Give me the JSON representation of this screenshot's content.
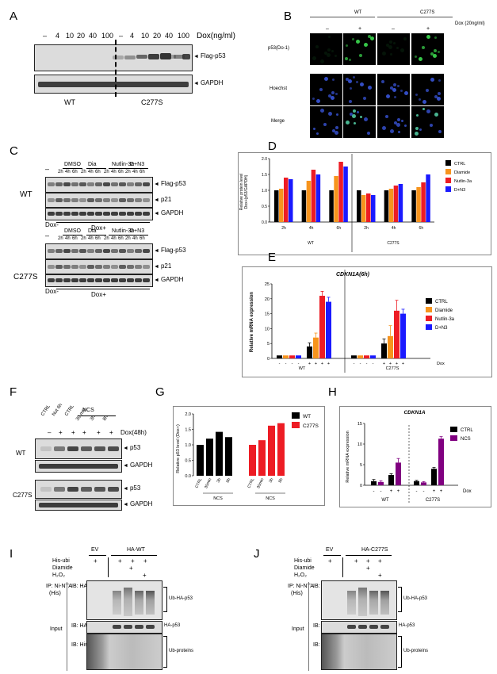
{
  "panels": [
    "A",
    "B",
    "C",
    "D",
    "E",
    "F",
    "G",
    "H",
    "I",
    "J"
  ],
  "panelA": {
    "dose_label": "Dox(ng/ml)",
    "doses": [
      "–",
      "4",
      "10",
      "20",
      "40",
      "100",
      "–",
      "4",
      "10",
      "20",
      "40",
      "100"
    ],
    "rows": [
      "Flag-p53",
      "GAPDH"
    ],
    "groups": [
      "WT",
      "C277S"
    ]
  },
  "panelB": {
    "groups": [
      "WT",
      "C277S"
    ],
    "dox": "Dox (20ng/ml)",
    "signs": [
      "–",
      "+",
      "–",
      "+"
    ],
    "rows": [
      "p53(Do-1)",
      "Hoechst",
      "Merge"
    ]
  },
  "panelC": {
    "treatments": [
      "DMSO",
      "Dia",
      "Nutlin-3a",
      "D+N3"
    ],
    "times": [
      "2h",
      "4h",
      "6h"
    ],
    "dash": "–",
    "rows": [
      "Flag-p53",
      "p21",
      "GAPDH"
    ],
    "doxneg": "Dox-",
    "doxpos": "Dox+",
    "groups": [
      "WT",
      "C277S"
    ]
  },
  "panelD": {
    "ylabel": "Relative protein level\nDox+(p53/GAPDH)",
    "legend": [
      "CTRL",
      "Diamide",
      "Nutlin-3a",
      "D+N3"
    ],
    "colors": [
      "#000000",
      "#f7941d",
      "#ed1c24",
      "#1a1aff"
    ],
    "times": [
      "2h",
      "4h",
      "6h",
      "2h",
      "4h",
      "6h"
    ],
    "groups": [
      "WT",
      "C277S"
    ],
    "yticks": [
      "0.0",
      "0.5",
      "1.0",
      "1.5",
      "2.0"
    ],
    "chart_data": {
      "type": "bar",
      "categories": [
        "WT 2h",
        "WT 4h",
        "WT 6h",
        "C277S 2h",
        "C277S 4h",
        "C277S 6h"
      ],
      "series": [
        {
          "name": "CTRL",
          "values": [
            1.0,
            1.0,
            1.0,
            1.0,
            1.0,
            1.0
          ]
        },
        {
          "name": "Diamide",
          "values": [
            1.05,
            1.3,
            1.45,
            0.85,
            1.05,
            1.1
          ]
        },
        {
          "name": "Nutlin-3a",
          "values": [
            1.4,
            1.65,
            1.9,
            0.9,
            1.15,
            1.25
          ]
        },
        {
          "name": "D+N3",
          "values": [
            1.35,
            1.5,
            1.75,
            0.85,
            1.2,
            1.5
          ]
        }
      ],
      "ylim": [
        0,
        2.0
      ]
    }
  },
  "panelE": {
    "title": "CDKN1A(6h)",
    "ylabel": "Relative mRNA expression",
    "legend": [
      "CTRL",
      "Diamide",
      "Nutlin-3a",
      "D+N3"
    ],
    "colors": [
      "#000000",
      "#f7941d",
      "#ed1c24",
      "#1a1aff"
    ],
    "groups": [
      "WT",
      "C277S"
    ],
    "dox": "Dox",
    "signs": [
      "-",
      "-",
      "-",
      "-",
      "+",
      "+",
      "+",
      "+",
      "-",
      "-",
      "-",
      "-",
      "+",
      "+",
      "+",
      "+"
    ],
    "yticks": [
      "0",
      "5",
      "10",
      "15",
      "20",
      "25"
    ],
    "chart_data": {
      "type": "bar",
      "categories": [
        "WT Dox-",
        "WT Dox+",
        "C277S Dox-",
        "C277S Dox+"
      ],
      "series": [
        {
          "name": "CTRL",
          "values": [
            1,
            4,
            1,
            5
          ]
        },
        {
          "name": "Diamide",
          "values": [
            1,
            7,
            1,
            7.5
          ]
        },
        {
          "name": "Nutlin-3a",
          "values": [
            1,
            21,
            1,
            16
          ]
        },
        {
          "name": "D+N3",
          "values": [
            1,
            19,
            1,
            15
          ]
        }
      ],
      "ylim": [
        0,
        25
      ]
    }
  },
  "panelF": {
    "cols": [
      "CTRL",
      "Nut 6h",
      "CTRL",
      "30 min",
      "3h",
      "8h"
    ],
    "ncs": "NCS",
    "dox": "Dox(48h)",
    "signs": [
      "–",
      "+",
      "+",
      "+",
      "+",
      "+"
    ],
    "rows": [
      "p53",
      "GAPDH"
    ],
    "groups": [
      "WT",
      "C277S"
    ]
  },
  "panelG": {
    "ylabel": "Relative p53 level (Dox+)",
    "legend": [
      "WT",
      "C277S"
    ],
    "colors": [
      "#000000",
      "#ed1c24"
    ],
    "xticks": [
      "CTRL",
      "30min",
      "3h",
      "8h",
      "CTRL",
      "30min",
      "3h",
      "8h"
    ],
    "ncs": "NCS",
    "yticks": [
      "0.0",
      "0.5",
      "1.0",
      "1.5",
      "2.0"
    ],
    "chart_data": {
      "type": "bar",
      "categories": [
        "CTRL",
        "30min",
        "3h",
        "8h"
      ],
      "series": [
        {
          "name": "WT",
          "values": [
            1.0,
            1.2,
            1.42,
            1.25
          ]
        },
        {
          "name": "C277S",
          "values": [
            1.0,
            1.15,
            1.62,
            1.7
          ]
        }
      ],
      "ylim": [
        0,
        2.0
      ]
    }
  },
  "panelH": {
    "title": "CDKN1A",
    "ylabel": "Relative mRNA expression",
    "legend": [
      "CTRL",
      "NCS"
    ],
    "colors": [
      "#000000",
      "#800080"
    ],
    "groups": [
      "WT",
      "C277S"
    ],
    "dox": "Dox",
    "signs": [
      "-",
      "-",
      "+",
      "+",
      "-",
      "-",
      "+",
      "+"
    ],
    "yticks": [
      "0",
      "5",
      "10",
      "15"
    ],
    "chart_data": {
      "type": "bar",
      "categories": [
        "WT Dox-",
        "WT Dox+",
        "C277S Dox-",
        "C277S Dox+"
      ],
      "series": [
        {
          "name": "CTRL",
          "values": [
            1,
            2.5,
            1,
            4
          ]
        },
        {
          "name": "NCS",
          "values": [
            0.8,
            5.5,
            0.7,
            11.3
          ]
        }
      ],
      "ylim": [
        0,
        15
      ]
    }
  },
  "panelI": {
    "cols": [
      "EV",
      "HA-WT"
    ],
    "conds": [
      "His-ubi",
      "Diamide",
      "H₂O₂"
    ],
    "ip": "IP: Ni-NTA",
    "his": "(His)",
    "ibha": "IB: HA",
    "ibhis": "IB: His",
    "input": "Input",
    "labels": [
      "Ub-HA-p53",
      "HA-p53",
      "Ub-proteins"
    ]
  },
  "panelJ": {
    "cols": [
      "EV",
      "HA-C277S"
    ],
    "conds": [
      "His-ubi",
      "Diamide",
      "H₂O₂"
    ],
    "ip": "IP: Ni-NTA",
    "his": "(His)",
    "ibha": "IB: HA",
    "ibhis": "IB: His",
    "input": "Input",
    "labels": [
      "Ub-HA-p53",
      "HA-p53",
      "Ub-proteins"
    ]
  }
}
